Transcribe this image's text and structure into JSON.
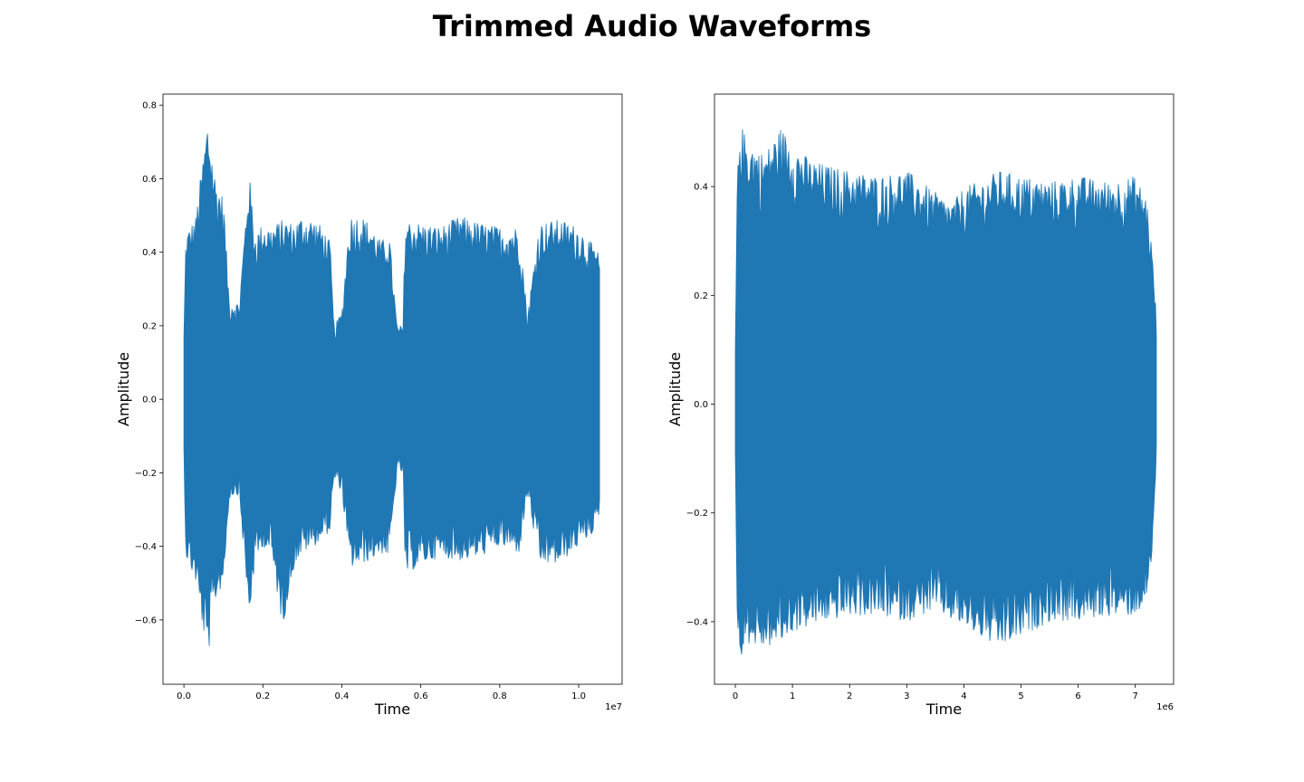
{
  "figure": {
    "title": "Trimmed Audio Waveforms"
  },
  "chart_data": [
    {
      "type": "line",
      "title": "",
      "xlabel": "Time",
      "ylabel": "Amplitude",
      "x_offset_label": "1e7",
      "xlim": [
        -0.053,
        1.11
      ],
      "ylim": [
        -0.775,
        0.83
      ],
      "xticks": [
        0.0,
        0.2,
        0.4,
        0.6,
        0.8,
        1.0
      ],
      "xtick_labels": [
        "0.0",
        "0.2",
        "0.4",
        "0.6",
        "0.8",
        "1.0"
      ],
      "yticks": [
        -0.6,
        -0.4,
        -0.2,
        0.0,
        0.2,
        0.4,
        0.6,
        0.8
      ],
      "ytick_labels": [
        "−0.6",
        "−0.4",
        "−0.2",
        "0.0",
        "0.2",
        "0.4",
        "0.6",
        "0.8"
      ],
      "grid": false,
      "color": "#1f77b4",
      "series": [
        {
          "x": [
            0.0,
            0.005,
            0.03,
            0.06,
            0.08,
            0.1,
            0.115,
            0.13,
            0.14,
            0.165,
            0.18,
            0.2,
            0.22,
            0.25,
            0.28,
            0.3,
            0.33,
            0.35,
            0.37,
            0.38,
            0.4,
            0.42,
            0.45,
            0.47,
            0.5,
            0.52,
            0.54,
            0.555,
            0.56,
            0.6,
            0.65,
            0.7,
            0.75,
            0.8,
            0.85,
            0.87,
            0.9,
            0.95,
            1.0,
            1.05,
            1.055
          ],
          "upper": [
            0.18,
            0.45,
            0.5,
            0.76,
            0.6,
            0.55,
            0.27,
            0.27,
            0.26,
            0.62,
            0.45,
            0.48,
            0.47,
            0.49,
            0.48,
            0.5,
            0.49,
            0.47,
            0.43,
            0.2,
            0.24,
            0.5,
            0.5,
            0.48,
            0.43,
            0.45,
            0.2,
            0.2,
            0.49,
            0.48,
            0.47,
            0.5,
            0.48,
            0.47,
            0.47,
            0.23,
            0.48,
            0.49,
            0.47,
            0.4,
            0.35
          ],
          "lower": [
            -0.15,
            -0.43,
            -0.5,
            -0.71,
            -0.55,
            -0.5,
            -0.27,
            -0.26,
            -0.26,
            -0.6,
            -0.45,
            -0.4,
            -0.42,
            -0.62,
            -0.45,
            -0.42,
            -0.4,
            -0.38,
            -0.36,
            -0.22,
            -0.25,
            -0.46,
            -0.45,
            -0.44,
            -0.42,
            -0.43,
            -0.2,
            -0.2,
            -0.48,
            -0.45,
            -0.43,
            -0.44,
            -0.43,
            -0.4,
            -0.42,
            -0.26,
            -0.45,
            -0.45,
            -0.4,
            -0.35,
            -0.22
          ]
        }
      ]
    },
    {
      "type": "line",
      "title": "",
      "xlabel": "Time",
      "ylabel": "Amplitude",
      "x_offset_label": "1e6",
      "xlim": [
        -0.365,
        7.67
      ],
      "ylim": [
        -0.515,
        0.57
      ],
      "xticks": [
        0,
        1,
        2,
        3,
        4,
        5,
        6,
        7
      ],
      "xtick_labels": [
        "0",
        "1",
        "2",
        "3",
        "4",
        "5",
        "6",
        "7"
      ],
      "yticks": [
        -0.4,
        -0.2,
        0.0,
        0.2,
        0.4
      ],
      "ytick_labels": [
        "−0.4",
        "−0.2",
        "0.0",
        "0.2",
        "0.4"
      ],
      "grid": false,
      "color": "#1f77b4",
      "series": [
        {
          "x": [
            0.0,
            0.03,
            0.08,
            0.2,
            0.5,
            0.8,
            1.0,
            1.3,
            1.6,
            2.0,
            2.5,
            3.0,
            3.5,
            3.8,
            4.0,
            4.3,
            4.6,
            5.0,
            5.5,
            6.0,
            6.5,
            7.0,
            7.2,
            7.28,
            7.35,
            7.38
          ],
          "upper": [
            0.1,
            0.4,
            0.52,
            0.49,
            0.46,
            0.51,
            0.48,
            0.45,
            0.44,
            0.43,
            0.42,
            0.43,
            0.39,
            0.37,
            0.4,
            0.41,
            0.43,
            0.42,
            0.41,
            0.42,
            0.41,
            0.42,
            0.38,
            0.3,
            0.2,
            0.1
          ],
          "lower": [
            -0.1,
            -0.4,
            -0.47,
            -0.44,
            -0.45,
            -0.44,
            -0.42,
            -0.41,
            -0.4,
            -0.39,
            -0.39,
            -0.4,
            -0.38,
            -0.4,
            -0.41,
            -0.43,
            -0.45,
            -0.43,
            -0.4,
            -0.4,
            -0.39,
            -0.39,
            -0.36,
            -0.3,
            -0.15,
            -0.06
          ]
        }
      ]
    }
  ]
}
